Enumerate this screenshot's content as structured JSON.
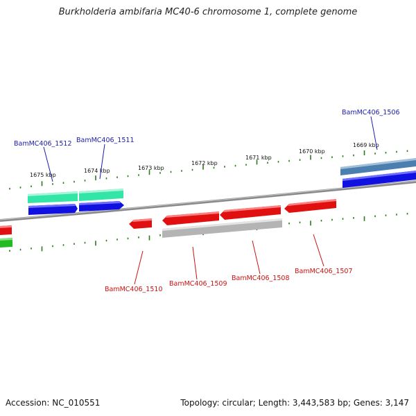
{
  "title": "Burkholderia ambifaria MC40-6 chromosome 1, complete genome",
  "footer": {
    "accession": "Accession: NC_010551",
    "topology": "Topology: circular; Length: 3,443,583 bp; Genes: 3,147"
  },
  "scale_ticks": [
    "1675 kbp",
    "1674 kbp",
    "1673 kbp",
    "1672 kbp",
    "1671 kbp",
    "1670 kbp",
    "1669 kbp"
  ],
  "gene_labels": {
    "top": [
      "BamMC406_1512",
      "BamMC406_1511",
      "BamMC406_1506"
    ],
    "bottom": [
      "BamMC406_1510",
      "BamMC406_1509",
      "BamMC406_1508",
      "BamMC406_1507"
    ]
  },
  "colors": {
    "backbone": "#808080",
    "tick": "#2a7a1a",
    "forward_cds": "#1010e0",
    "forward_feature_green": "#33e6a8",
    "forward_feature_steel": "#4a7fb0",
    "reverse_cds": "#e01010",
    "reverse_feature_gray": "#b4b4b4",
    "edge_green": "#22bb22",
    "label_top": "#1a1aaa",
    "label_bottom": "#cc1111"
  }
}
